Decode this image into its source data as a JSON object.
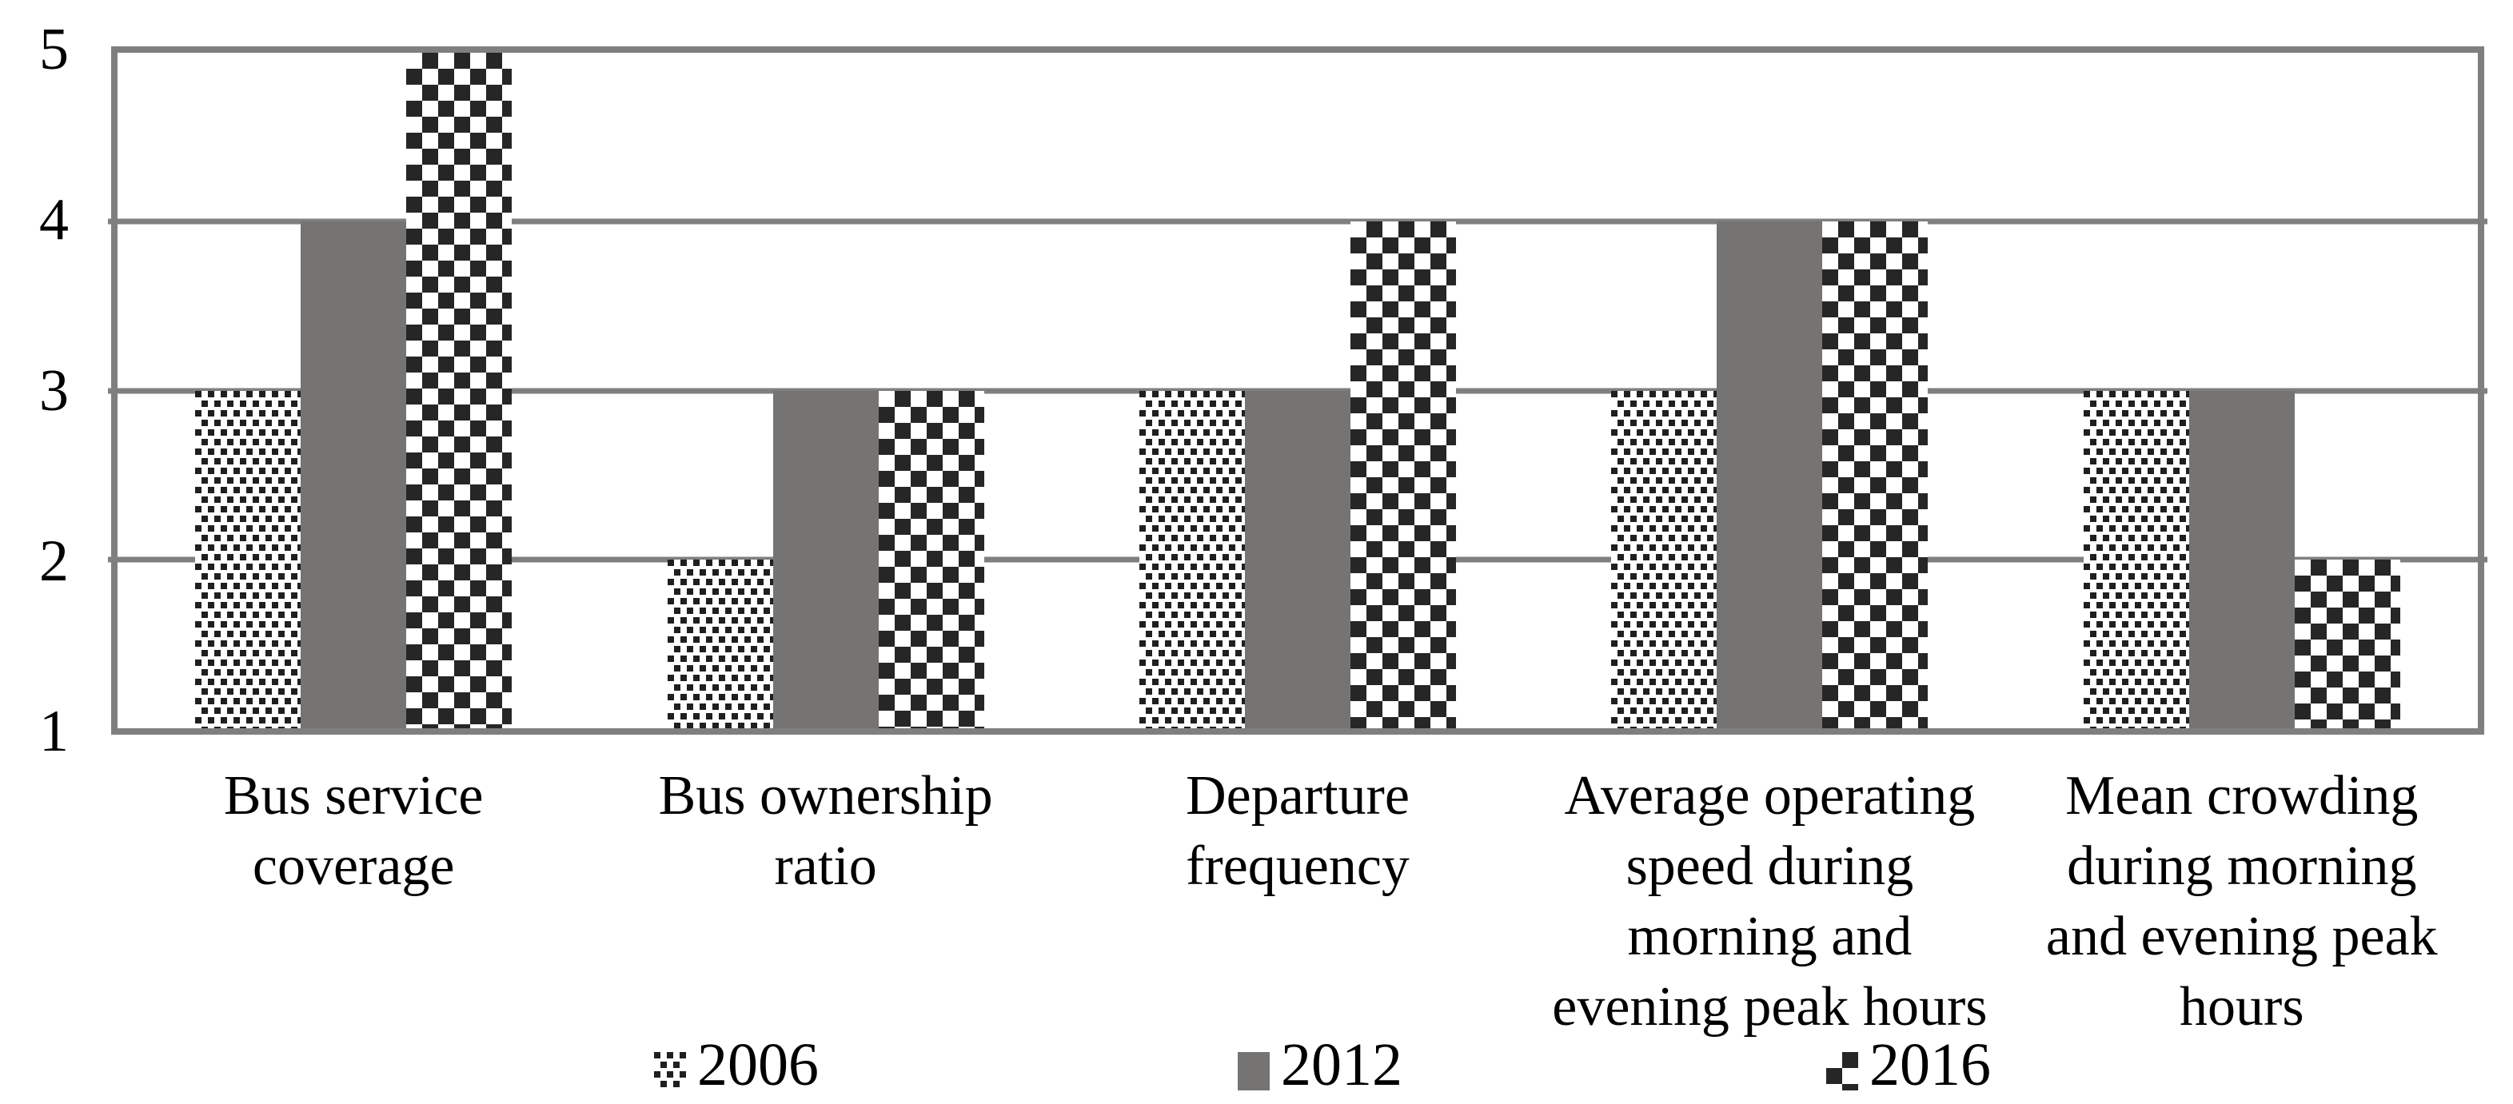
{
  "chart_data": {
    "type": "bar",
    "categories": [
      "Bus service coverage",
      "Bus ownership ratio",
      "Departure frequency",
      "Average operating speed during morning and evening peak hours",
      "Mean crowding during morning and evening peak hours"
    ],
    "category_lines": [
      [
        "Bus service",
        "coverage"
      ],
      [
        "Bus ownership",
        "ratio"
      ],
      [
        "Departure",
        "frequency"
      ],
      [
        "Average operating",
        "speed during",
        "morning and",
        "evening peak hours"
      ],
      [
        "Mean crowding",
        "during morning",
        "and evening peak",
        "hours"
      ]
    ],
    "series": [
      {
        "name": "2006",
        "pattern": "dotted",
        "values": [
          3,
          2,
          3,
          3,
          3
        ]
      },
      {
        "name": "2012",
        "pattern": "solid",
        "values": [
          4,
          3,
          3,
          4,
          3
        ]
      },
      {
        "name": "2016",
        "pattern": "checker",
        "values": [
          5,
          3,
          4,
          4,
          2
        ]
      }
    ],
    "yticks": [
      5,
      4,
      3,
      2,
      1
    ],
    "ylim": [
      1,
      5
    ],
    "grid": true,
    "legend_position": "bottom",
    "colors": {
      "solid_gray": "#767373",
      "dot_dark": "#1f1f1f",
      "checker_dark": "#262626",
      "grid_line": "#7f7f7f",
      "text": "#000000",
      "background": "#ffffff"
    }
  }
}
